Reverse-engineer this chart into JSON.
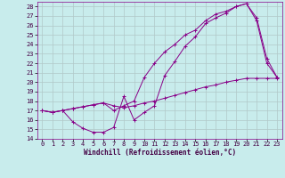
{
  "xlabel": "Windchill (Refroidissement éolien,°C)",
  "bg_color": "#c8ecec",
  "grid_color": "#b0c8c8",
  "line_color": "#880088",
  "xlim": [
    -0.5,
    23.5
  ],
  "ylim": [
    14,
    28.5
  ],
  "xticks": [
    0,
    1,
    2,
    3,
    4,
    5,
    6,
    7,
    8,
    9,
    10,
    11,
    12,
    13,
    14,
    15,
    16,
    17,
    18,
    19,
    20,
    21,
    22,
    23
  ],
  "yticks": [
    14,
    15,
    16,
    17,
    18,
    19,
    20,
    21,
    22,
    23,
    24,
    25,
    26,
    27,
    28
  ],
  "line1_x": [
    0,
    1,
    2,
    3,
    4,
    5,
    6,
    7,
    8,
    9,
    10,
    11,
    12,
    13,
    14,
    15,
    16,
    17,
    18,
    19,
    20,
    21,
    22,
    23
  ],
  "line1_y": [
    17.0,
    16.8,
    17.0,
    15.8,
    15.1,
    14.7,
    14.7,
    15.2,
    18.5,
    16.0,
    16.8,
    17.5,
    20.7,
    22.2,
    23.8,
    24.8,
    26.2,
    26.8,
    27.3,
    28.0,
    28.3,
    26.5,
    22.0,
    20.5
  ],
  "line2_x": [
    0,
    1,
    2,
    3,
    4,
    5,
    6,
    7,
    8,
    9,
    10,
    11,
    12,
    13,
    14,
    15,
    16,
    17,
    18,
    19,
    20,
    21,
    22,
    23
  ],
  "line2_y": [
    17.0,
    16.8,
    17.0,
    17.2,
    17.4,
    17.6,
    17.8,
    17.5,
    17.3,
    17.5,
    17.8,
    18.0,
    18.3,
    18.6,
    18.9,
    19.2,
    19.5,
    19.7,
    20.0,
    20.2,
    20.4,
    20.4,
    20.4,
    20.4
  ],
  "line3_x": [
    0,
    1,
    2,
    3,
    4,
    5,
    6,
    7,
    8,
    9,
    10,
    11,
    12,
    13,
    14,
    15,
    16,
    17,
    18,
    19,
    20,
    21,
    22,
    23
  ],
  "line3_y": [
    17.0,
    16.8,
    17.0,
    17.2,
    17.4,
    17.6,
    17.8,
    17.0,
    17.5,
    18.0,
    20.5,
    22.0,
    23.2,
    24.0,
    25.0,
    25.5,
    26.5,
    27.2,
    27.5,
    28.0,
    28.3,
    26.8,
    22.5,
    20.5
  ],
  "tick_labelsize": 5.0,
  "xlabel_fontsize": 5.5,
  "marker_size": 2.5
}
